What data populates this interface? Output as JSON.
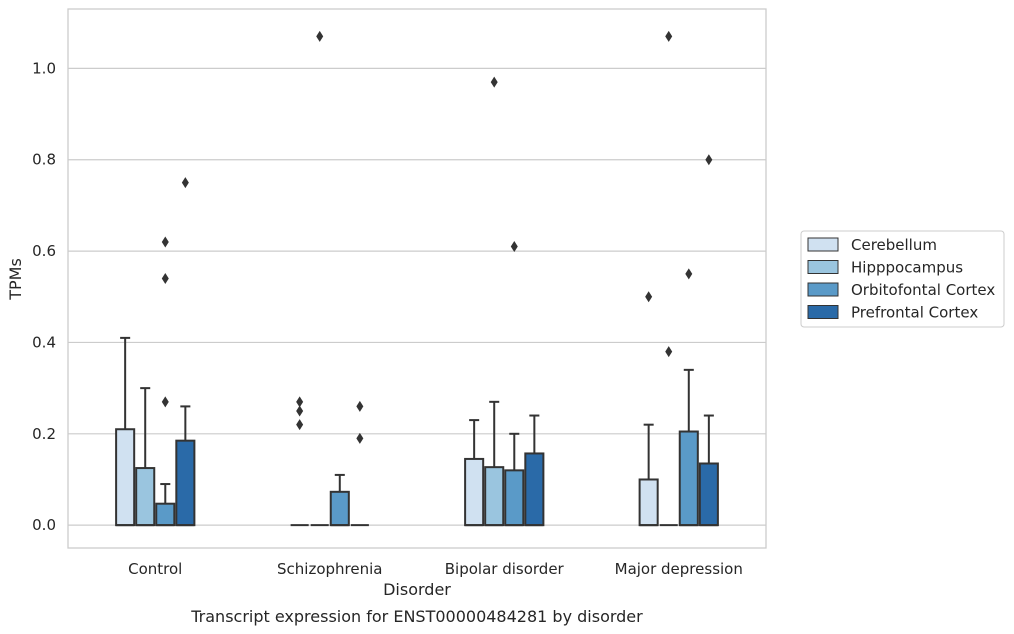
{
  "chart_data": {
    "type": "box",
    "caption": "Transcript expression for ENST00000484281 by disorder",
    "xlabel": "Disorder",
    "ylabel": "TPMs",
    "ylim": [
      -0.05,
      1.13
    ],
    "yticks": [
      0.0,
      0.2,
      0.4,
      0.6,
      0.8,
      1.0
    ],
    "ytick_labels": [
      "0.0",
      "0.2",
      "0.4",
      "0.6",
      "0.8",
      "1.0"
    ],
    "grid": "horizontal",
    "legend_position": "right",
    "categories": [
      "Control",
      "Schizophrenia",
      "Bipolar disorder",
      "Major depression"
    ],
    "series": [
      {
        "name": "Cerebellum",
        "color": "#d0e1f1",
        "boxes": [
          {
            "q1": 0.0,
            "median": 0.0,
            "q3": 0.21,
            "whisker_low": 0.0,
            "whisker_high": 0.41,
            "outliers": []
          },
          {
            "q1": 0.0,
            "median": 0.0,
            "q3": 0.0,
            "whisker_low": 0.0,
            "whisker_high": 0.0,
            "outliers": [
              0.22,
              0.25,
              0.27
            ]
          },
          {
            "q1": 0.0,
            "median": 0.0,
            "q3": 0.145,
            "whisker_low": 0.0,
            "whisker_high": 0.23,
            "outliers": []
          },
          {
            "q1": 0.0,
            "median": 0.0,
            "q3": 0.1,
            "whisker_low": 0.0,
            "whisker_high": 0.22,
            "outliers": [
              0.5
            ]
          }
        ]
      },
      {
        "name": "Hipppocampus",
        "color": "#9ac5df",
        "boxes": [
          {
            "q1": 0.0,
            "median": 0.0,
            "q3": 0.125,
            "whisker_low": 0.0,
            "whisker_high": 0.3,
            "outliers": []
          },
          {
            "q1": 0.0,
            "median": 0.0,
            "q3": 0.0,
            "whisker_low": 0.0,
            "whisker_high": 0.0,
            "outliers": [
              1.07
            ]
          },
          {
            "q1": 0.0,
            "median": 0.0,
            "q3": 0.127,
            "whisker_low": 0.0,
            "whisker_high": 0.27,
            "outliers": [
              0.97
            ]
          },
          {
            "q1": 0.0,
            "median": 0.0,
            "q3": 0.0,
            "whisker_low": 0.0,
            "whisker_high": 0.0,
            "outliers": [
              0.38,
              1.07
            ]
          }
        ]
      },
      {
        "name": "Orbitofontal Cortex",
        "color": "#5a9ac8",
        "boxes": [
          {
            "q1": 0.0,
            "median": 0.0,
            "q3": 0.047,
            "whisker_low": 0.0,
            "whisker_high": 0.09,
            "outliers": [
              0.27,
              0.54,
              0.62
            ]
          },
          {
            "q1": 0.0,
            "median": 0.0,
            "q3": 0.073,
            "whisker_low": 0.0,
            "whisker_high": 0.11,
            "outliers": []
          },
          {
            "q1": 0.0,
            "median": 0.0,
            "q3": 0.12,
            "whisker_low": 0.0,
            "whisker_high": 0.2,
            "outliers": [
              0.61
            ]
          },
          {
            "q1": 0.0,
            "median": 0.0,
            "q3": 0.205,
            "whisker_low": 0.0,
            "whisker_high": 0.34,
            "outliers": [
              0.55
            ]
          }
        ]
      },
      {
        "name": "Prefrontal Cortex",
        "color": "#2a6aa8",
        "boxes": [
          {
            "q1": 0.0,
            "median": 0.0,
            "q3": 0.185,
            "whisker_low": 0.0,
            "whisker_high": 0.26,
            "outliers": [
              0.75
            ]
          },
          {
            "q1": 0.0,
            "median": 0.0,
            "q3": 0.0,
            "whisker_low": 0.0,
            "whisker_high": 0.0,
            "outliers": [
              0.19,
              0.26
            ]
          },
          {
            "q1": 0.0,
            "median": 0.0,
            "q3": 0.157,
            "whisker_low": 0.0,
            "whisker_high": 0.24,
            "outliers": []
          },
          {
            "q1": 0.0,
            "median": 0.0,
            "q3": 0.135,
            "whisker_low": 0.0,
            "whisker_high": 0.24,
            "outliers": [
              0.8
            ]
          }
        ]
      }
    ]
  }
}
